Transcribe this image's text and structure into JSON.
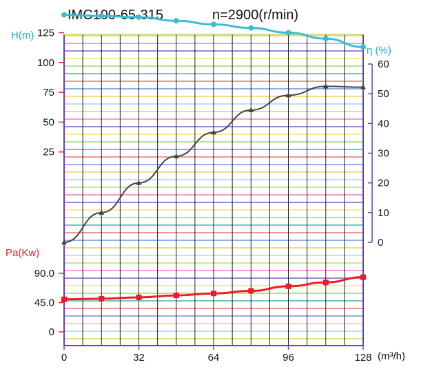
{
  "chart_data": {
    "type": "line",
    "title": "IMC100-65-315",
    "subtitle": "n=2900(r/min)",
    "xlabel": "(m³/h)",
    "x_ticks": [
      "0",
      "32",
      "64",
      "96",
      "128"
    ],
    "xlim": [
      0,
      128
    ],
    "axes": {
      "head": {
        "label": "H(m)",
        "ticks": [
          "25",
          "50",
          "75",
          "100",
          "125"
        ],
        "ylim": [
          0,
          150
        ],
        "color": "#22aacc"
      },
      "efficiency": {
        "label": "η (%)",
        "ticks": [
          "0",
          "10",
          "20",
          "30",
          "40",
          "50",
          "60"
        ],
        "ylim": [
          0,
          60
        ],
        "color": "#22aacc"
      },
      "power": {
        "label": "Pa(Kw)",
        "ticks": [
          "0",
          "45.0",
          "90.0"
        ],
        "ylim": [
          0,
          90
        ],
        "color": "#ee1c24"
      }
    },
    "series": [
      {
        "axis": "head",
        "color": "#3bbcd3",
        "x": [
          0,
          16,
          32,
          48,
          64,
          80,
          96,
          112,
          128
        ],
        "y": [
          140,
          139,
          138,
          135,
          132,
          129,
          125,
          120,
          113
        ]
      },
      {
        "axis": "efficiency",
        "color": "#444444",
        "x": [
          0,
          16,
          32,
          48,
          64,
          80,
          96,
          112,
          128
        ],
        "y": [
          0,
          10,
          20,
          29,
          37,
          44.5,
          49.5,
          52.5,
          52.2
        ]
      },
      {
        "axis": "power",
        "color": "#ee1c24",
        "x": [
          0,
          16,
          32,
          48,
          64,
          80,
          96,
          112,
          128
        ],
        "y": [
          50,
          51,
          53,
          56,
          59,
          63,
          70,
          76,
          84
        ]
      }
    ],
    "grid": true
  }
}
